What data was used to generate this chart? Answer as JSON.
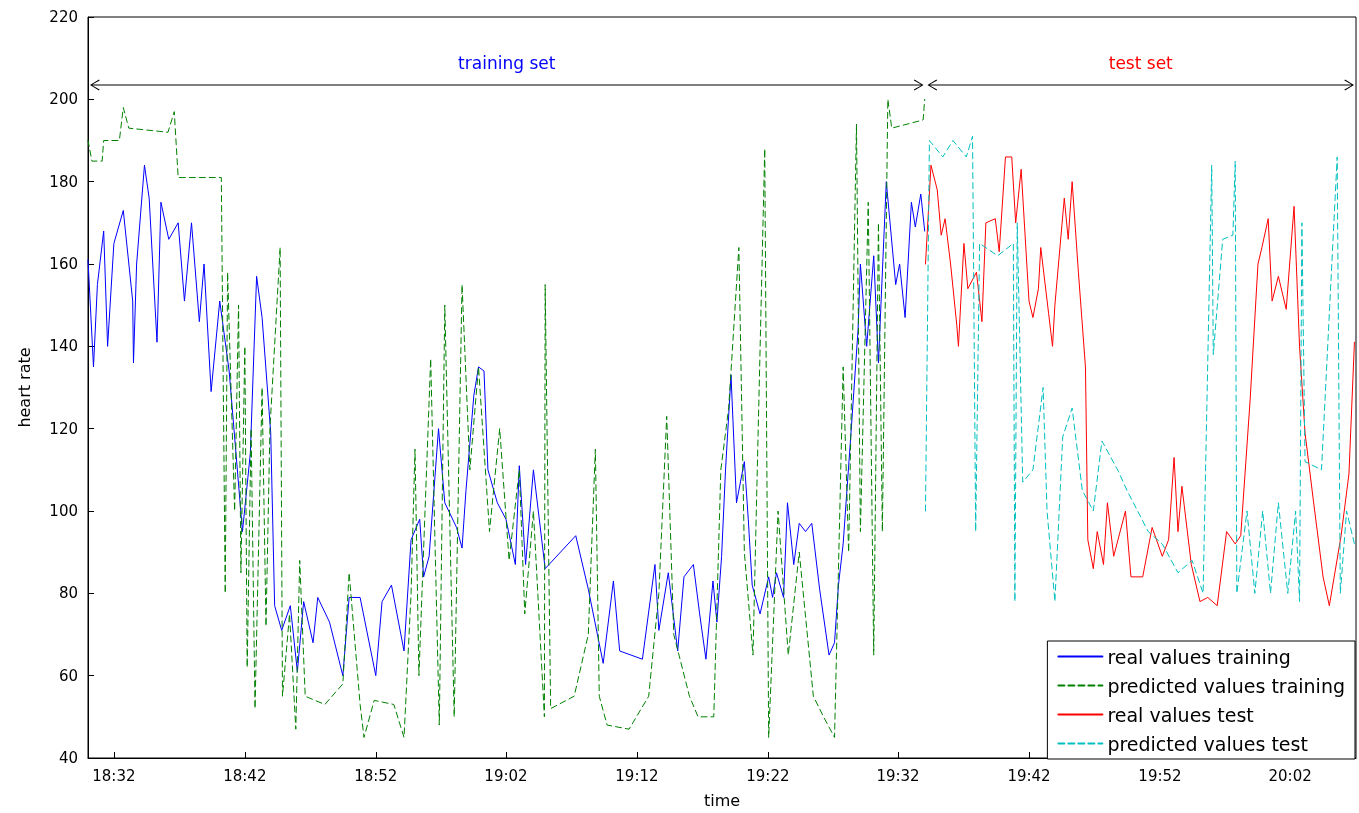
{
  "chart_data": {
    "type": "line",
    "xlabel": "time",
    "ylabel": "heart rate",
    "xlim": [
      18.5,
      20.117
    ],
    "xticks": [
      {
        "value": 18.533,
        "label": "18:32"
      },
      {
        "value": 18.7,
        "label": "18:42"
      },
      {
        "value": 18.867,
        "label": "18:52"
      },
      {
        "value": 19.033,
        "label": "19:02"
      },
      {
        "value": 19.2,
        "label": "19:12"
      },
      {
        "value": 19.367,
        "label": "19:22"
      },
      {
        "value": 19.533,
        "label": "19:32"
      },
      {
        "value": 19.7,
        "label": "19:42"
      },
      {
        "value": 19.867,
        "label": "19:52"
      },
      {
        "value": 20.033,
        "label": "20:02"
      }
    ],
    "ylim": [
      40,
      220
    ],
    "yticks": [
      40,
      60,
      80,
      100,
      120,
      140,
      160,
      180,
      200,
      220
    ],
    "grid": false,
    "legend": "bottom right",
    "marker": "none",
    "annotations": [
      "training set",
      "test set"
    ],
    "series": [
      {
        "name": "real values training",
        "color": "#0000ff",
        "line_style": "solid",
        "x": [
          18.5,
          18.507,
          18.512,
          18.52,
          18.525,
          18.533,
          18.545,
          18.557,
          18.558,
          18.562,
          18.572,
          18.578,
          18.588,
          18.593,
          18.603,
          18.615,
          18.623,
          18.632,
          18.642,
          18.648,
          18.657,
          18.668,
          18.68,
          18.697,
          18.707,
          18.715,
          18.722,
          18.733,
          18.738,
          18.747,
          18.758,
          18.767,
          18.775,
          18.787,
          18.793,
          18.808,
          18.825,
          18.833,
          18.847,
          18.867,
          18.875,
          18.887,
          18.903,
          18.912,
          18.923,
          18.928,
          18.935,
          18.947,
          18.955,
          18.97,
          18.977,
          18.982,
          18.992,
          18.998,
          19.005,
          19.01,
          19.022,
          19.033,
          19.045,
          19.05,
          19.058,
          19.068,
          19.083,
          19.122,
          19.138,
          19.157,
          19.17,
          19.178,
          19.207,
          19.223,
          19.228,
          19.24,
          19.252,
          19.26,
          19.272,
          19.28,
          19.288,
          19.297,
          19.302,
          19.308,
          19.313,
          19.32,
          19.327,
          19.337,
          19.342,
          19.347,
          19.357,
          19.368,
          19.373,
          19.378,
          19.387,
          19.392,
          19.4,
          19.407,
          19.415,
          19.423,
          19.433,
          19.445,
          19.452,
          19.457,
          19.463,
          19.473,
          19.482,
          19.485,
          19.493,
          19.502,
          19.508,
          19.518,
          19.53,
          19.535,
          19.542,
          19.55,
          19.555,
          19.562,
          19.567
        ],
        "values": [
          161,
          135,
          155,
          168,
          140,
          165,
          173,
          151,
          136,
          160,
          184,
          176,
          141,
          175,
          166,
          170,
          151,
          170,
          146,
          160,
          129,
          151,
          134,
          95,
          114,
          157,
          147,
          119,
          77,
          71,
          77,
          61,
          78,
          68,
          79,
          73,
          60,
          79,
          79,
          60,
          78,
          82,
          66,
          93,
          98,
          84,
          89,
          120,
          102,
          96,
          91,
          105,
          128,
          135,
          134,
          110,
          102,
          98,
          87,
          111,
          87,
          110,
          86,
          94,
          81,
          63,
          83,
          66,
          64,
          87,
          71,
          85,
          66,
          84,
          87,
          75,
          64,
          83,
          73,
          89,
          110,
          133,
          102,
          112,
          98,
          82,
          75,
          84,
          79,
          85,
          79,
          102,
          87,
          97,
          95,
          97,
          81,
          65,
          68,
          82,
          92,
          119,
          144,
          160,
          140,
          162,
          136,
          180,
          155,
          160,
          147,
          175,
          169,
          177,
          168
        ]
      },
      {
        "name": "predicted values training",
        "color": "#008000",
        "line_style": "dashed",
        "x": [
          18.5,
          18.505,
          18.518,
          18.52,
          18.54,
          18.545,
          18.552,
          18.602,
          18.61,
          18.615,
          18.67,
          18.675,
          18.678,
          18.687,
          18.692,
          18.695,
          18.7,
          18.703,
          18.708,
          18.713,
          18.722,
          18.727,
          18.732,
          18.745,
          18.748,
          18.757,
          18.765,
          18.77,
          18.777,
          18.802,
          18.825,
          18.833,
          18.847,
          18.852,
          18.865,
          18.89,
          18.903,
          18.912,
          18.917,
          18.922,
          18.937,
          18.948,
          18.955,
          18.967,
          18.977,
          18.987,
          18.998,
          19.012,
          19.025,
          19.037,
          19.05,
          19.057,
          19.068,
          19.082,
          19.083,
          19.09,
          19.12,
          19.138,
          19.147,
          19.152,
          19.162,
          19.19,
          19.215,
          19.228,
          19.238,
          19.247,
          19.267,
          19.278,
          19.298,
          19.307,
          19.317,
          19.33,
          19.337,
          19.348,
          19.363,
          19.368,
          19.38,
          19.393,
          19.407,
          19.425,
          19.438,
          19.452,
          19.463,
          19.47,
          19.48,
          19.485,
          19.495,
          19.502,
          19.508,
          19.513,
          19.52,
          19.525,
          19.565,
          19.567
        ],
        "values": [
          190,
          185,
          185,
          190,
          190,
          198,
          193,
          192,
          197,
          181,
          181,
          80,
          158,
          100,
          150,
          85,
          140,
          62,
          120,
          52,
          130,
          72,
          120,
          164,
          55,
          75,
          47,
          88,
          55,
          53,
          58,
          85,
          53,
          45,
          54,
          53,
          45,
          80,
          115,
          60,
          137,
          48,
          150,
          50,
          155,
          110,
          135,
          95,
          120,
          88,
          110,
          75,
          100,
          50,
          155,
          52,
          55,
          70,
          115,
          55,
          48,
          47,
          55,
          80,
          123,
          70,
          55,
          50,
          50,
          110,
          125,
          164,
          90,
          65,
          188,
          45,
          100,
          65,
          90,
          55,
          50,
          45,
          135,
          90,
          194,
          95,
          175,
          65,
          170,
          95,
          200,
          193,
          195,
          200
        ]
      },
      {
        "name": "real values test",
        "color": "#ff0000",
        "line_style": "solid",
        "x": [
          19.568,
          19.575,
          19.583,
          19.588,
          19.593,
          19.6,
          19.608,
          19.61,
          19.617,
          19.622,
          19.633,
          19.64,
          19.645,
          19.657,
          19.662,
          19.67,
          19.678,
          19.683,
          19.69,
          19.7,
          19.705,
          19.712,
          19.715,
          19.725,
          19.73,
          19.733,
          19.745,
          19.75,
          19.755,
          19.763,
          19.772,
          19.775,
          19.782,
          19.787,
          19.795,
          19.8,
          19.808,
          19.823,
          19.83,
          19.845,
          19.857,
          19.87,
          19.878,
          19.885,
          19.89,
          19.895,
          19.907,
          19.918,
          19.928,
          19.94,
          19.952,
          19.963,
          19.97,
          19.982,
          19.992,
          19.997,
          20.005,
          20.01,
          20.018,
          20.028,
          20.038,
          20.045,
          20.052,
          20.063,
          20.075,
          20.083,
          20.098,
          20.108,
          20.115
        ],
        "values": [
          160,
          184,
          178,
          167,
          171,
          160,
          145,
          140,
          165,
          154,
          158,
          146,
          170,
          171,
          163,
          186,
          186,
          170,
          183,
          151,
          147,
          154,
          164,
          148,
          140,
          150,
          176,
          166,
          180,
          158,
          135,
          93,
          86,
          95,
          87,
          102,
          89,
          100,
          84,
          84,
          96,
          89,
          93,
          113,
          95,
          106,
          87,
          78,
          79,
          77,
          95,
          92,
          94,
          127,
          160,
          164,
          171,
          151,
          157,
          149,
          174,
          140,
          119,
          102,
          84,
          77,
          94,
          109,
          141
        ]
      },
      {
        "name": "predicted values test",
        "color": "#00bfbf",
        "line_style": "dashed",
        "x": [
          19.568,
          19.573,
          19.59,
          19.603,
          19.62,
          19.628,
          19.632,
          19.637,
          19.66,
          19.68,
          19.682,
          19.685,
          19.692,
          19.705,
          19.718,
          19.723,
          19.733,
          19.743,
          19.755,
          19.768,
          19.782,
          19.793,
          19.813,
          19.825,
          19.852,
          19.87,
          19.89,
          19.908,
          19.922,
          19.933,
          19.935,
          19.947,
          19.96,
          19.963,
          19.965,
          19.978,
          19.988,
          19.998,
          20.008,
          20.018,
          20.03,
          20.04,
          20.045,
          20.048,
          20.052,
          20.073,
          20.093,
          20.097,
          20.105,
          20.115
        ],
        "values": [
          100,
          190,
          186,
          190,
          186,
          191,
          95,
          165,
          162,
          165,
          78,
          170,
          107,
          110,
          130,
          100,
          78,
          118,
          125,
          105,
          100,
          117,
          110,
          105,
          95,
          92,
          85,
          88,
          80,
          184,
          138,
          166,
          167,
          185,
          80,
          100,
          80,
          100,
          80,
          102,
          80,
          100,
          78,
          170,
          112,
          110,
          186,
          80,
          100,
          92
        ]
      }
    ]
  }
}
